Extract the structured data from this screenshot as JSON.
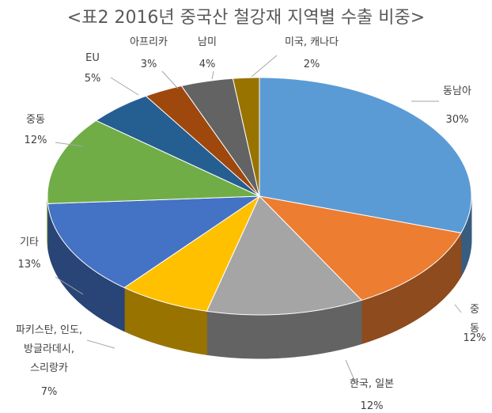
{
  "chart_data": {
    "type": "pie",
    "title": "<표2 2016년 중국산 철강재 지역별 수출 비중>",
    "categories": [
      "동남아",
      "중동",
      "한국, 일본",
      "파키스탄, 인도,\n방글라데시,\n스리랑카",
      "기타",
      "중동",
      "EU",
      "아프리카",
      "남미",
      "미국, 캐나다"
    ],
    "values": [
      30,
      12,
      12,
      7,
      13,
      12,
      5,
      3,
      4,
      2
    ],
    "value_labels": [
      "30%",
      "12%",
      "12%",
      "7%",
      "13%",
      "12%",
      "5%",
      "3%",
      "4%",
      "2%"
    ],
    "colors": [
      "#5b9bd5",
      "#ed7d31",
      "#a5a5a5",
      "#ffc000",
      "#4472c4",
      "#70ad47",
      "#255e91",
      "#9e480e",
      "#636363",
      "#997300"
    ]
  }
}
